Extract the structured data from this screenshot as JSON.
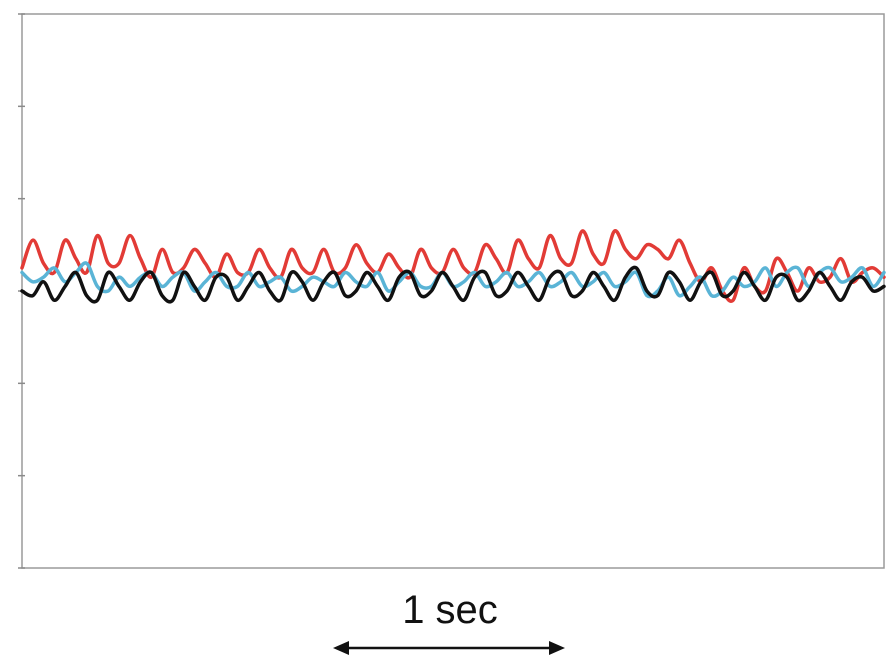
{
  "chart_data": {
    "type": "line",
    "title": "",
    "xlabel": "",
    "ylabel": "",
    "scale_bar": {
      "label": "1 sec",
      "seconds": 1
    },
    "x_unit": "s",
    "xlim": [
      0,
      4.0
    ],
    "ylim": [
      -3,
      3
    ],
    "y_tick_count": 7,
    "grid": false,
    "legend": "none",
    "series": [
      {
        "color": "#e23b36",
        "x": [
          0.0,
          0.05,
          0.1,
          0.15,
          0.2,
          0.25,
          0.3,
          0.35,
          0.4,
          0.45,
          0.5,
          0.55,
          0.6,
          0.65,
          0.7,
          0.75,
          0.8,
          0.85,
          0.9,
          0.95,
          1.0,
          1.05,
          1.1,
          1.15,
          1.2,
          1.25,
          1.3,
          1.35,
          1.4,
          1.45,
          1.5,
          1.55,
          1.6,
          1.65,
          1.7,
          1.75,
          1.8,
          1.85,
          1.9,
          1.95,
          2.0,
          2.05,
          2.1,
          2.15,
          2.2,
          2.25,
          2.3,
          2.35,
          2.4,
          2.45,
          2.5,
          2.55,
          2.6,
          2.65,
          2.7,
          2.75,
          2.8,
          2.85,
          2.9,
          2.95,
          3.0,
          3.05,
          3.1,
          3.15,
          3.2,
          3.25,
          3.3,
          3.35,
          3.4,
          3.45,
          3.5,
          3.55,
          3.6,
          3.65,
          3.7,
          3.75,
          3.8,
          3.85,
          3.9,
          3.95,
          4.0
        ],
        "y": [
          0.25,
          0.55,
          0.3,
          0.2,
          0.55,
          0.35,
          0.2,
          0.6,
          0.3,
          0.3,
          0.6,
          0.35,
          0.15,
          0.45,
          0.2,
          0.25,
          0.45,
          0.3,
          0.15,
          0.4,
          0.2,
          0.2,
          0.45,
          0.25,
          0.15,
          0.45,
          0.25,
          0.2,
          0.45,
          0.2,
          0.25,
          0.5,
          0.3,
          0.2,
          0.4,
          0.25,
          0.15,
          0.45,
          0.25,
          0.2,
          0.45,
          0.25,
          0.2,
          0.5,
          0.35,
          0.2,
          0.55,
          0.35,
          0.25,
          0.6,
          0.35,
          0.3,
          0.65,
          0.4,
          0.3,
          0.65,
          0.45,
          0.35,
          0.5,
          0.45,
          0.35,
          0.55,
          0.3,
          0.1,
          0.25,
          0.0,
          -0.1,
          0.25,
          0.05,
          0.0,
          0.35,
          0.2,
          0.0,
          0.25,
          0.1,
          0.15,
          0.35,
          0.1,
          0.2,
          0.25,
          0.15
        ]
      },
      {
        "color": "#5ab4d6",
        "x": [
          0.0,
          0.05,
          0.1,
          0.15,
          0.2,
          0.25,
          0.3,
          0.35,
          0.4,
          0.45,
          0.5,
          0.55,
          0.6,
          0.65,
          0.7,
          0.75,
          0.8,
          0.85,
          0.9,
          0.95,
          1.0,
          1.05,
          1.1,
          1.15,
          1.2,
          1.25,
          1.3,
          1.35,
          1.4,
          1.45,
          1.5,
          1.55,
          1.6,
          1.65,
          1.7,
          1.75,
          1.8,
          1.85,
          1.9,
          1.95,
          2.0,
          2.05,
          2.1,
          2.15,
          2.2,
          2.25,
          2.3,
          2.35,
          2.4,
          2.45,
          2.5,
          2.55,
          2.6,
          2.65,
          2.7,
          2.75,
          2.8,
          2.85,
          2.9,
          2.95,
          3.0,
          3.05,
          3.1,
          3.15,
          3.2,
          3.25,
          3.3,
          3.35,
          3.4,
          3.45,
          3.5,
          3.55,
          3.6,
          3.65,
          3.7,
          3.75,
          3.8,
          3.85,
          3.9,
          3.95,
          4.0
        ],
        "y": [
          0.2,
          0.1,
          0.15,
          0.25,
          0.1,
          0.2,
          0.3,
          0.05,
          0.0,
          0.15,
          0.05,
          0.15,
          0.2,
          0.05,
          0.15,
          0.2,
          0.0,
          0.1,
          0.2,
          0.05,
          0.05,
          0.2,
          0.05,
          0.1,
          0.15,
          0.0,
          0.05,
          0.15,
          0.1,
          0.05,
          0.2,
          0.1,
          0.05,
          0.2,
          0.0,
          0.1,
          0.2,
          0.05,
          0.05,
          0.2,
          0.05,
          0.1,
          0.2,
          0.05,
          0.1,
          0.2,
          0.05,
          0.1,
          0.2,
          0.05,
          0.1,
          0.2,
          0.05,
          0.1,
          0.2,
          0.05,
          0.1,
          0.2,
          -0.05,
          0.0,
          0.15,
          -0.05,
          0.05,
          0.15,
          -0.05,
          0.0,
          0.15,
          0.05,
          0.1,
          0.25,
          0.05,
          0.2,
          0.25,
          0.05,
          0.2,
          0.25,
          0.1,
          0.15,
          0.25,
          0.05,
          0.2
        ]
      },
      {
        "color": "#111111",
        "x": [
          0.0,
          0.05,
          0.1,
          0.15,
          0.2,
          0.25,
          0.3,
          0.35,
          0.4,
          0.45,
          0.5,
          0.55,
          0.6,
          0.65,
          0.7,
          0.75,
          0.8,
          0.85,
          0.9,
          0.95,
          1.0,
          1.05,
          1.1,
          1.15,
          1.2,
          1.25,
          1.3,
          1.35,
          1.4,
          1.45,
          1.5,
          1.55,
          1.6,
          1.65,
          1.7,
          1.75,
          1.8,
          1.85,
          1.9,
          1.95,
          2.0,
          2.05,
          2.1,
          2.15,
          2.2,
          2.25,
          2.3,
          2.35,
          2.4,
          2.45,
          2.5,
          2.55,
          2.6,
          2.65,
          2.7,
          2.75,
          2.8,
          2.85,
          2.9,
          2.95,
          3.0,
          3.05,
          3.1,
          3.15,
          3.2,
          3.25,
          3.3,
          3.35,
          3.4,
          3.45,
          3.5,
          3.55,
          3.6,
          3.65,
          3.7,
          3.75,
          3.8,
          3.85,
          3.9,
          3.95,
          4.0
        ],
        "y": [
          0.0,
          -0.05,
          0.1,
          -0.1,
          0.05,
          0.2,
          -0.05,
          -0.1,
          0.2,
          0.05,
          -0.1,
          0.1,
          0.2,
          -0.05,
          -0.1,
          0.2,
          0.05,
          -0.1,
          0.15,
          0.15,
          -0.1,
          0.05,
          0.2,
          0.0,
          -0.1,
          0.2,
          0.1,
          -0.1,
          0.1,
          0.2,
          -0.05,
          0.0,
          0.2,
          0.05,
          -0.1,
          0.15,
          0.2,
          -0.05,
          0.0,
          0.2,
          0.05,
          -0.1,
          0.15,
          0.2,
          -0.05,
          0.0,
          0.2,
          0.05,
          -0.1,
          0.15,
          0.2,
          -0.05,
          0.0,
          0.2,
          0.05,
          -0.1,
          0.15,
          0.25,
          0.0,
          -0.05,
          0.2,
          0.1,
          -0.1,
          0.1,
          0.2,
          -0.05,
          0.0,
          0.2,
          0.05,
          -0.1,
          0.15,
          0.15,
          -0.1,
          0.0,
          0.2,
          0.05,
          -0.1,
          0.1,
          0.15,
          0.0,
          0.05
        ]
      }
    ]
  }
}
